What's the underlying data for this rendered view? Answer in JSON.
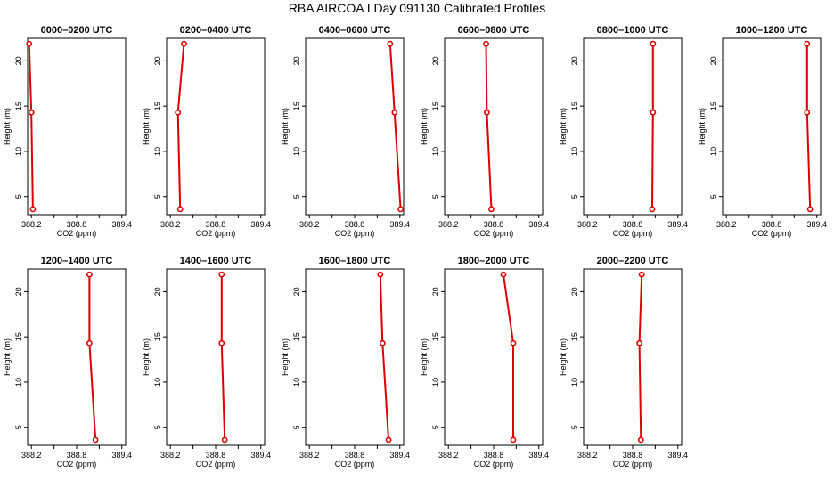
{
  "chart_data": {
    "type": "line",
    "title": "RBA AIRCOA I  Day 091130  Calibrated Profiles",
    "xlabel": "CO2 (ppm)",
    "ylabel": "Height (m)",
    "xlim": [
      388.15,
      389.45
    ],
    "ylim": [
      3,
      22.5
    ],
    "xticks": [
      388.2,
      388.5,
      388.8,
      389.1,
      389.4
    ],
    "xtick_labels": [
      "388.2",
      "",
      "388.8",
      "",
      "389.4"
    ],
    "yticks": [
      5,
      10,
      15,
      20
    ],
    "ytick_labels": [
      "5",
      "10",
      "15",
      "20"
    ],
    "line_color": "#dd0000",
    "panels": [
      {
        "title": "0000–0200 UTC",
        "heights": [
          21.9,
          14.3,
          3.6
        ],
        "co2": [
          388.17,
          388.2,
          388.22
        ]
      },
      {
        "title": "0200–0400 UTC",
        "heights": [
          21.9,
          14.3,
          3.6
        ],
        "co2": [
          388.38,
          388.3,
          388.33
        ]
      },
      {
        "title": "0400–0600 UTC",
        "heights": [
          21.9,
          14.3,
          3.6
        ],
        "co2": [
          389.27,
          389.33,
          389.41
        ]
      },
      {
        "title": "0600–0800 UTC",
        "heights": [
          21.9,
          14.3,
          3.6
        ],
        "co2": [
          388.7,
          388.71,
          388.77
        ]
      },
      {
        "title": "0800–1000 UTC",
        "heights": [
          21.9,
          14.3,
          3.6
        ],
        "co2": [
          389.07,
          389.07,
          389.06
        ]
      },
      {
        "title": "1000–1200 UTC",
        "heights": [
          21.9,
          14.3,
          3.6
        ],
        "co2": [
          389.27,
          389.27,
          389.31
        ]
      },
      {
        "title": "1200–1400 UTC",
        "heights": [
          21.9,
          14.3,
          3.6
        ],
        "co2": [
          388.97,
          388.97,
          389.05
        ]
      },
      {
        "title": "1400–1600 UTC",
        "heights": [
          21.9,
          14.3,
          3.6
        ],
        "co2": [
          388.88,
          388.88,
          388.92
        ]
      },
      {
        "title": "1600–1800 UTC",
        "heights": [
          21.9,
          14.3,
          3.6
        ],
        "co2": [
          389.14,
          389.17,
          389.25
        ]
      },
      {
        "title": "1800–2000 UTC",
        "heights": [
          21.9,
          14.3,
          3.6
        ],
        "co2": [
          388.93,
          389.06,
          389.06
        ]
      },
      {
        "title": "2000–2200 UTC",
        "heights": [
          21.9,
          14.3,
          3.6
        ],
        "co2": [
          388.92,
          388.89,
          388.91
        ]
      }
    ]
  }
}
